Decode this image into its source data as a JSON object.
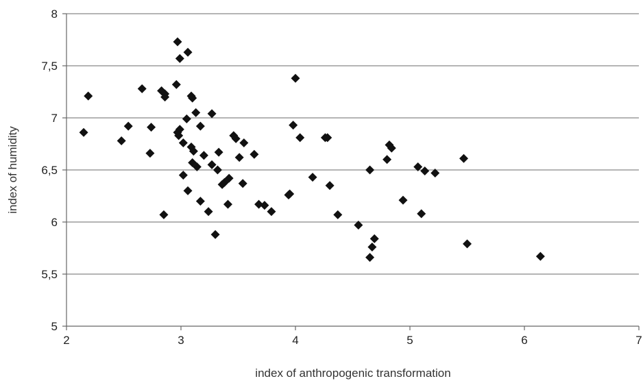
{
  "chart_data": {
    "type": "scatter",
    "title": "",
    "xlabel": "index of anthropogenic  transformation",
    "ylabel": "index of humidity",
    "xlim": [
      2,
      7
    ],
    "ylim": [
      5,
      8
    ],
    "x_ticks": [
      2,
      3,
      4,
      5,
      6,
      7
    ],
    "y_ticks": [
      5,
      5.5,
      6,
      6.5,
      7,
      7.5,
      8
    ],
    "x_tick_labels": [
      "2",
      "3",
      "4",
      "5",
      "6",
      "7"
    ],
    "y_tick_labels": [
      "5",
      "5,5",
      "6",
      "6,5",
      "7",
      "7,5",
      "8"
    ],
    "grid": "horizontal",
    "legend": "none",
    "marker": "diamond",
    "colors": {
      "marker": "#111111",
      "grid": "#888888",
      "axis": "#666666",
      "background": "#ffffff"
    },
    "series": [
      {
        "points": [
          [
            2.15,
            6.86
          ],
          [
            2.19,
            7.21
          ],
          [
            2.48,
            6.78
          ],
          [
            2.54,
            6.92
          ],
          [
            2.66,
            7.28
          ],
          [
            2.74,
            6.91
          ],
          [
            2.73,
            6.66
          ],
          [
            2.83,
            7.26
          ],
          [
            2.86,
            7.23
          ],
          [
            2.86,
            7.2
          ],
          [
            2.85,
            6.07
          ],
          [
            2.96,
            7.32
          ],
          [
            2.97,
            7.73
          ],
          [
            2.99,
            7.57
          ],
          [
            3.06,
            7.63
          ],
          [
            3.09,
            7.21
          ],
          [
            3.1,
            7.19
          ],
          [
            2.97,
            6.86
          ],
          [
            2.99,
            6.89
          ],
          [
            2.98,
            6.83
          ],
          [
            3.02,
            6.76
          ],
          [
            3.05,
            6.99
          ],
          [
            3.13,
            7.05
          ],
          [
            3.09,
            6.72
          ],
          [
            3.11,
            6.68
          ],
          [
            3.1,
            6.57
          ],
          [
            3.14,
            6.53
          ],
          [
            3.17,
            6.92
          ],
          [
            3.02,
            6.45
          ],
          [
            3.06,
            6.3
          ],
          [
            3.2,
            6.64
          ],
          [
            3.17,
            6.2
          ],
          [
            3.24,
            6.1
          ],
          [
            3.27,
            7.04
          ],
          [
            3.27,
            6.55
          ],
          [
            3.32,
            6.5
          ],
          [
            3.33,
            6.67
          ],
          [
            3.36,
            6.36
          ],
          [
            3.38,
            6.38
          ],
          [
            3.42,
            6.42
          ],
          [
            3.41,
            6.17
          ],
          [
            3.3,
            5.88
          ],
          [
            3.46,
            6.83
          ],
          [
            3.48,
            6.8
          ],
          [
            3.51,
            6.62
          ],
          [
            3.54,
            6.37
          ],
          [
            3.55,
            6.76
          ],
          [
            3.64,
            6.65
          ],
          [
            3.68,
            6.17
          ],
          [
            3.73,
            6.16
          ],
          [
            3.79,
            6.1
          ],
          [
            3.94,
            6.26
          ],
          [
            3.95,
            6.27
          ],
          [
            3.98,
            6.93
          ],
          [
            4.0,
            7.38
          ],
          [
            4.04,
            6.81
          ],
          [
            4.15,
            6.43
          ],
          [
            4.26,
            6.81
          ],
          [
            4.28,
            6.81
          ],
          [
            4.3,
            6.35
          ],
          [
            4.37,
            6.07
          ],
          [
            4.55,
            5.97
          ],
          [
            4.65,
            6.5
          ],
          [
            4.65,
            5.66
          ],
          [
            4.67,
            5.76
          ],
          [
            4.69,
            5.84
          ],
          [
            4.8,
            6.6
          ],
          [
            4.82,
            6.74
          ],
          [
            4.84,
            6.71
          ],
          [
            4.94,
            6.21
          ],
          [
            5.07,
            6.53
          ],
          [
            5.1,
            6.08
          ],
          [
            5.13,
            6.49
          ],
          [
            5.22,
            6.47
          ],
          [
            5.47,
            6.61
          ],
          [
            5.5,
            5.79
          ],
          [
            6.14,
            5.67
          ]
        ]
      }
    ]
  }
}
